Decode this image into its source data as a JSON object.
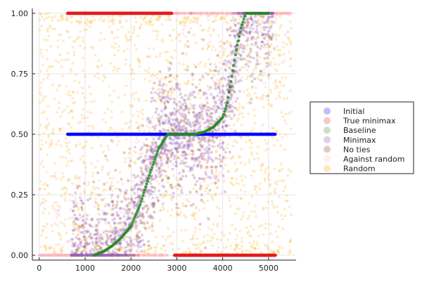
{
  "chart_data": {
    "type": "scatter",
    "title": "",
    "xlabel": "",
    "ylabel": "",
    "xlim": [
      -150,
      5600
    ],
    "ylim": [
      -0.02,
      1.02
    ],
    "x_ticks": [
      0,
      1000,
      2000,
      3000,
      4000,
      5000
    ],
    "x_tick_labels": [
      "0",
      "1000",
      "2000",
      "3000",
      "4000",
      "5000"
    ],
    "y_ticks": [
      0,
      0.25,
      0.5,
      0.75,
      1.0
    ],
    "y_tick_labels": [
      "0.00",
      "0.25",
      "0.50",
      "0.75",
      "1.00"
    ],
    "grid": true,
    "legend_position": "right",
    "series": [
      {
        "name": "Initial",
        "color": "#0000ff",
        "description": "constant value 0.5",
        "points": [
          [
            620,
            0.5
          ],
          [
            1000,
            0.5
          ],
          [
            1500,
            0.5
          ],
          [
            2000,
            0.5
          ],
          [
            2500,
            0.5
          ],
          [
            3000,
            0.5
          ],
          [
            3500,
            0.5
          ],
          [
            4000,
            0.5
          ],
          [
            4500,
            0.5
          ],
          [
            5150,
            0.5
          ]
        ]
      },
      {
        "name": "True minimax",
        "color": "#e31a1c",
        "segments": [
          {
            "x_range": [
              620,
              2900
            ],
            "y": 1.0
          },
          {
            "x_range": [
              2950,
              5150
            ],
            "y": 0.0
          }
        ]
      },
      {
        "name": "Baseline",
        "color": "#228b22",
        "points": [
          [
            1200,
            0.0
          ],
          [
            1400,
            0.015
          ],
          [
            1600,
            0.04
          ],
          [
            1800,
            0.075
          ],
          [
            2000,
            0.12
          ],
          [
            2200,
            0.21
          ],
          [
            2400,
            0.33
          ],
          [
            2600,
            0.44
          ],
          [
            2800,
            0.5
          ],
          [
            3000,
            0.5
          ],
          [
            3200,
            0.5
          ],
          [
            3400,
            0.5
          ],
          [
            3600,
            0.51
          ],
          [
            3800,
            0.53
          ],
          [
            4000,
            0.57
          ],
          [
            4100,
            0.63
          ],
          [
            4200,
            0.74
          ],
          [
            4300,
            0.85
          ],
          [
            4400,
            0.94
          ],
          [
            4500,
            1.0
          ],
          [
            4600,
            1.0
          ],
          [
            4800,
            1.0
          ],
          [
            5000,
            1.0
          ]
        ]
      },
      {
        "name": "Minimax",
        "color": "#9467bd",
        "description": "dense cloud following the Baseline curve with spread"
      },
      {
        "name": "No ties",
        "color": "#a0522d",
        "description": "sparse cloud around the same curve"
      },
      {
        "name": "Against random",
        "color": "#ffb6c1",
        "segments": [
          {
            "x_range": [
              0,
              2800
            ],
            "y": 0.0
          },
          {
            "x_range": [
              2800,
              5500
            ],
            "y": 1.0
          }
        ],
        "description": "also scattered points across the plot"
      },
      {
        "name": "Random",
        "color": "#ffa500",
        "description": "uniform scatter across the whole plot area"
      }
    ]
  }
}
